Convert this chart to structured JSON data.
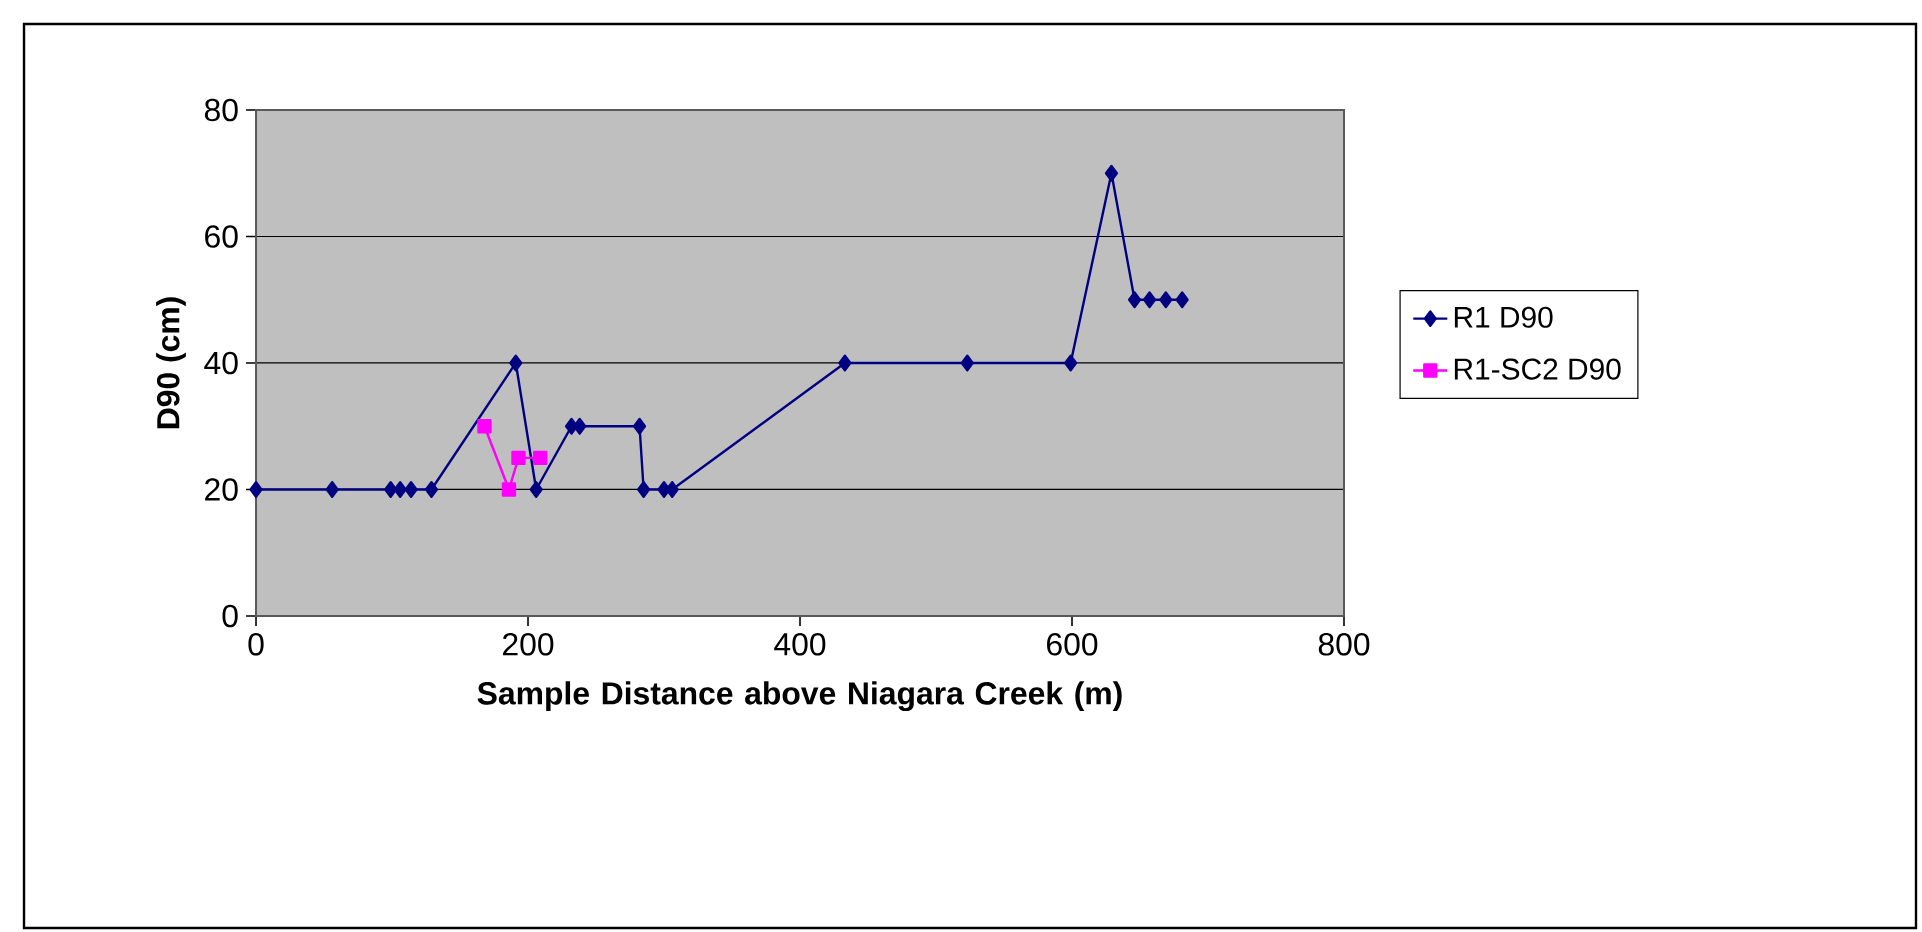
{
  "chart_data": {
    "type": "line",
    "xlabel": "Sample Distance above Niagara Creek (m)",
    "ylabel": "D90 (cm)",
    "xlim": [
      0,
      800
    ],
    "xticks": [
      0,
      200,
      400,
      600,
      800
    ],
    "ylim": [
      0,
      80
    ],
    "yticks": [
      0,
      20,
      40,
      60,
      80
    ],
    "grid": "y",
    "legend": "right",
    "series": [
      {
        "name": "R1 D90",
        "color": "#000080",
        "marker": "diamond",
        "x": [
          0,
          56,
          99,
          106,
          114,
          129,
          191,
          206,
          232,
          238,
          282,
          285,
          300,
          306,
          433,
          523,
          599,
          629,
          646,
          657,
          669,
          681
        ],
        "values": [
          20,
          20,
          20,
          20,
          20,
          20,
          40,
          20,
          30,
          30,
          30,
          20,
          20,
          20,
          40,
          40,
          40,
          70,
          50,
          50,
          50,
          50
        ]
      },
      {
        "name": "R1-SC2 D90",
        "color": "#ff00ff",
        "marker": "square",
        "x": [
          168,
          186,
          193,
          209
        ],
        "values": [
          30,
          20,
          25,
          25
        ]
      }
    ]
  }
}
